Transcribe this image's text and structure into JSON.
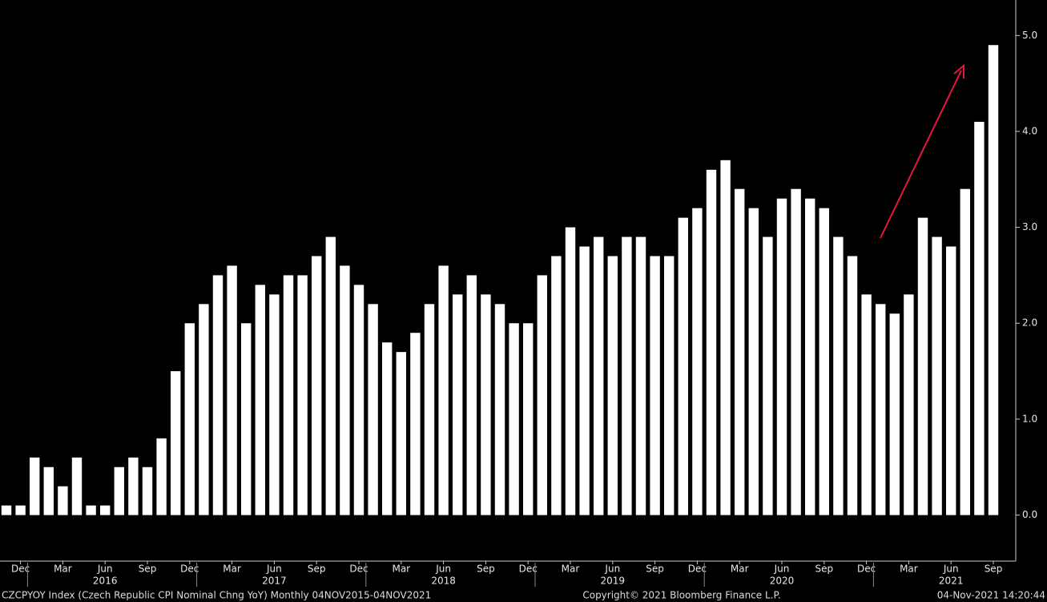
{
  "chart_data": {
    "type": "bar",
    "color": "#ffffff",
    "categories": [
      null,
      "Dec",
      null,
      null,
      "Mar",
      null,
      null,
      "Jun",
      null,
      null,
      "Sep",
      null,
      null,
      "Dec",
      null,
      null,
      "Mar",
      null,
      null,
      "Jun",
      null,
      null,
      "Sep",
      null,
      null,
      "Dec",
      null,
      null,
      "Mar",
      null,
      null,
      "Jun",
      null,
      null,
      "Sep",
      null,
      null,
      "Dec",
      null,
      null,
      "Mar",
      null,
      null,
      "Jun",
      null,
      null,
      "Sep",
      null,
      null,
      "Dec",
      null,
      null,
      "Mar",
      null,
      null,
      "Jun",
      null,
      null,
      "Sep",
      null,
      null,
      "Dec",
      null,
      null,
      "Mar",
      null,
      null,
      "Jun",
      null,
      null,
      "Sep"
    ],
    "values": [
      0.1,
      0.1,
      0.6,
      0.5,
      0.3,
      0.6,
      0.1,
      0.1,
      0.5,
      0.6,
      0.5,
      0.8,
      1.5,
      2.0,
      2.2,
      2.5,
      2.6,
      2.0,
      2.4,
      2.3,
      2.5,
      2.5,
      2.7,
      2.9,
      2.6,
      2.4,
      2.2,
      1.8,
      1.7,
      1.9,
      2.2,
      2.6,
      2.3,
      2.5,
      2.3,
      2.2,
      2.0,
      2.0,
      2.5,
      2.7,
      3.0,
      2.8,
      2.9,
      2.7,
      2.9,
      2.9,
      2.7,
      2.7,
      3.1,
      3.2,
      3.6,
      3.7,
      3.4,
      3.2,
      2.9,
      3.3,
      3.4,
      3.3,
      3.2,
      2.9,
      2.7,
      2.3,
      2.2,
      2.1,
      2.3,
      3.1,
      2.9,
      2.8,
      3.4,
      4.1,
      4.9
    ],
    "year_labels": [
      "2016",
      "2017",
      "2018",
      "2019",
      "2020",
      "2021"
    ],
    "ylim": [
      -0.48,
      5.37
    ],
    "yticks": [
      {
        "value": 0,
        "label": "0.0"
      },
      {
        "value": 1,
        "label": "1.0"
      },
      {
        "value": 2,
        "label": "2.0"
      },
      {
        "value": 3,
        "label": "3.0"
      },
      {
        "value": 4,
        "label": "4.0"
      },
      {
        "value": 5,
        "label": "5.0"
      }
    ],
    "footer_left": "CZCPYOY Index (Czech Republic CPI Nominal Chng YoY)  Monthly 04NOV2015-04NOV2021",
    "footer_center": "Copyright© 2021 Bloomberg Finance L.P.",
    "footer_right": "04-Nov-2021 14:20:44"
  }
}
